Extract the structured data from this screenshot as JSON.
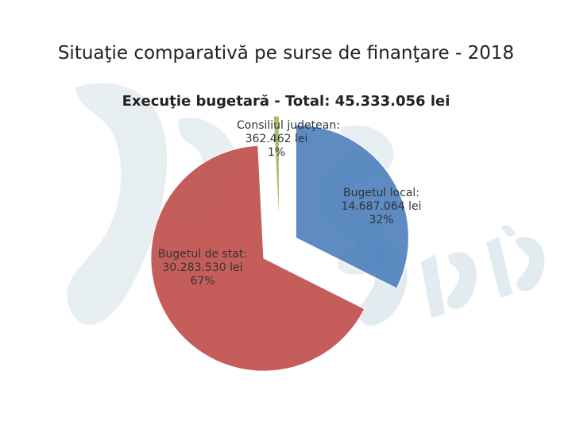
{
  "slide_title": "Situaţie comparativă pe surse de finanţare - 2018",
  "chart_data": {
    "type": "pie",
    "title": "Execuţie bugetară - Total: 45.333.056 lei",
    "slices": [
      {
        "name": "Bugetul local:",
        "value_text": "14.687.064 lei",
        "percent_text": "32%",
        "value": 14687064,
        "color": "#4f81bd"
      },
      {
        "name": "Bugetul de stat:",
        "value_text": "30.283.530 lei",
        "percent_text": "67%",
        "value": 30283530,
        "color": "#c0504d"
      },
      {
        "name": "Consiliul judeţean:",
        "value_text": "362.462 lei",
        "percent_text": "1%",
        "value": 362462,
        "color": "#9bbb59"
      }
    ],
    "exploded": true,
    "legend": "none"
  }
}
